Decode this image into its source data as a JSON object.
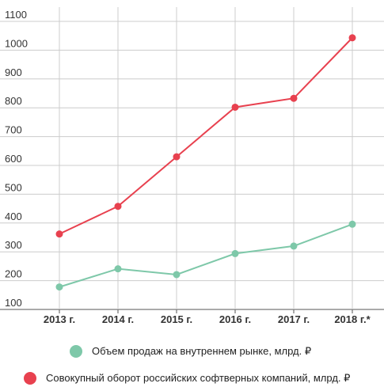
{
  "chart_data": {
    "type": "line",
    "x": [
      "2013 г.",
      "2014 г.",
      "2015 г.",
      "2016 г.",
      "2017 г.",
      "2018 г.*"
    ],
    "yticks": [
      "100",
      "200",
      "300",
      "400",
      "500",
      "600",
      "700",
      "800",
      "900",
      "1000",
      "1100"
    ],
    "ylim": [
      100,
      1100
    ],
    "grid": true,
    "legend_position": "bottom",
    "series": [
      {
        "name": "Объем продаж на внутреннем рынке, млрд. ₽",
        "color": "#7ec8a9",
        "values": [
          178,
          241,
          221,
          294,
          320,
          396
        ]
      },
      {
        "name": "Совокупный оборот российских софтверных компаний, млрд. ₽",
        "color": "#e8414f",
        "values": [
          362,
          458,
          630,
          802,
          833,
          1043
        ]
      }
    ]
  }
}
